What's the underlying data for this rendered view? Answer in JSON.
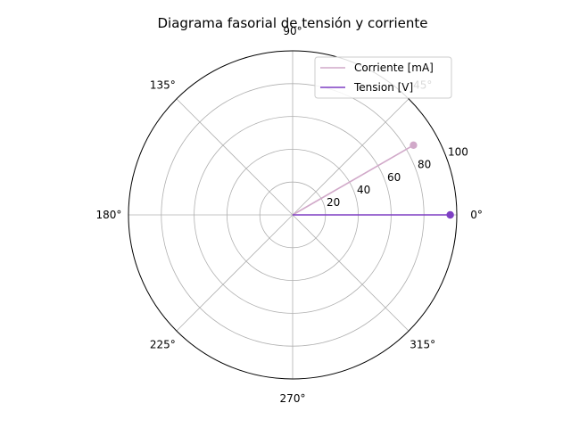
{
  "chart_data": {
    "type": "polar",
    "title": "Diagrama fasorial de tensión y corriente",
    "angle_tick_labels": [
      "0°",
      "45°",
      "90°",
      "135°",
      "180°",
      "225°",
      "270°",
      "315°"
    ],
    "angle_tick_degrees": [
      0,
      45,
      90,
      135,
      180,
      225,
      270,
      315
    ],
    "radial_tick_labels": [
      "20",
      "40",
      "60",
      "80",
      "100"
    ],
    "radial_tick_values": [
      20,
      40,
      60,
      80,
      100
    ],
    "rlim": [
      0,
      100
    ],
    "grid": true,
    "legend_position": "top-right",
    "series": [
      {
        "name": "Corriente [mA]",
        "color": "#d1a9c9",
        "points": [
          {
            "angle_deg": 0,
            "r": 0
          },
          {
            "angle_deg": 30,
            "r": 85
          }
        ]
      },
      {
        "name": "Tension [V]",
        "color": "#7e3fc4",
        "points": [
          {
            "angle_deg": 0,
            "r": 0
          },
          {
            "angle_deg": 0,
            "r": 96
          }
        ]
      }
    ]
  }
}
